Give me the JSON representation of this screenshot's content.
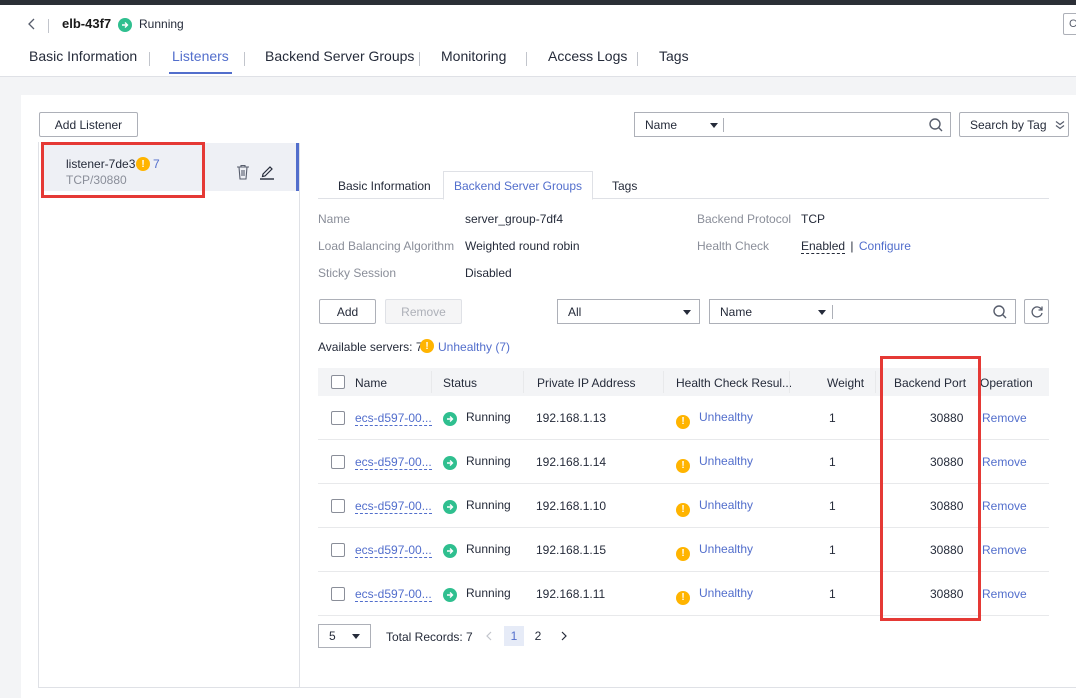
{
  "header": {
    "elb_name": "elb-43f7",
    "status": "Running"
  },
  "main_tabs": [
    {
      "label": "Basic Information",
      "active": false
    },
    {
      "label": "Listeners",
      "active": true
    },
    {
      "label": "Backend Server Groups",
      "active": false
    },
    {
      "label": "Monitoring",
      "active": false
    },
    {
      "label": "Access Logs",
      "active": false
    },
    {
      "label": "Tags",
      "active": false
    }
  ],
  "toolbar": {
    "add_listener_label": "Add Listener",
    "filter_select": "Name",
    "search_by_tag_label": "Search by Tag"
  },
  "listener": {
    "name": "listener-7de3",
    "warn_count": "7",
    "protocol_port": "TCP/30880"
  },
  "sub_tabs": [
    {
      "label": "Basic Information",
      "active": false
    },
    {
      "label": "Backend Server Groups",
      "active": true
    },
    {
      "label": "Tags",
      "active": false
    }
  ],
  "group_info": {
    "name_label": "Name",
    "name_value": "server_group-7df4",
    "protocol_label": "Backend Protocol",
    "protocol_value": "TCP",
    "algo_label": "Load Balancing Algorithm",
    "algo_value": "Weighted round robin",
    "health_label": "Health Check",
    "health_enabled": "Enabled",
    "health_sep": "|",
    "health_configure": "Configure",
    "sticky_label": "Sticky Session",
    "sticky_value": "Disabled"
  },
  "server_toolbar": {
    "add_label": "Add",
    "remove_label": "Remove",
    "status_select": "All",
    "field_select": "Name"
  },
  "summary": {
    "available": "Available servers: 7",
    "unhealthy": "Unhealthy (7)"
  },
  "table": {
    "columns": [
      "Name",
      "Status",
      "Private IP Address",
      "Health Check Resul...",
      "Weight",
      "Backend Port",
      "Operation"
    ],
    "rows": [
      {
        "name": "ecs-d597-00...",
        "status": "Running",
        "ip": "192.168.1.13",
        "health": "Unhealthy",
        "weight": "1",
        "port": "30880",
        "op": "Remove"
      },
      {
        "name": "ecs-d597-00...",
        "status": "Running",
        "ip": "192.168.1.14",
        "health": "Unhealthy",
        "weight": "1",
        "port": "30880",
        "op": "Remove"
      },
      {
        "name": "ecs-d597-00...",
        "status": "Running",
        "ip": "192.168.1.10",
        "health": "Unhealthy",
        "weight": "1",
        "port": "30880",
        "op": "Remove"
      },
      {
        "name": "ecs-d597-00...",
        "status": "Running",
        "ip": "192.168.1.15",
        "health": "Unhealthy",
        "weight": "1",
        "port": "30880",
        "op": "Remove"
      },
      {
        "name": "ecs-d597-00...",
        "status": "Running",
        "ip": "192.168.1.11",
        "health": "Unhealthy",
        "weight": "1",
        "port": "30880",
        "op": "Remove"
      }
    ]
  },
  "pagination": {
    "page_size": "5",
    "total": "Total Records: 7",
    "pages": [
      "1",
      "2"
    ],
    "current": "1"
  },
  "colors": {
    "accent": "#526ecc",
    "running": "#2fbf8f",
    "warning": "#ffb400",
    "highlight": "#e53935"
  }
}
